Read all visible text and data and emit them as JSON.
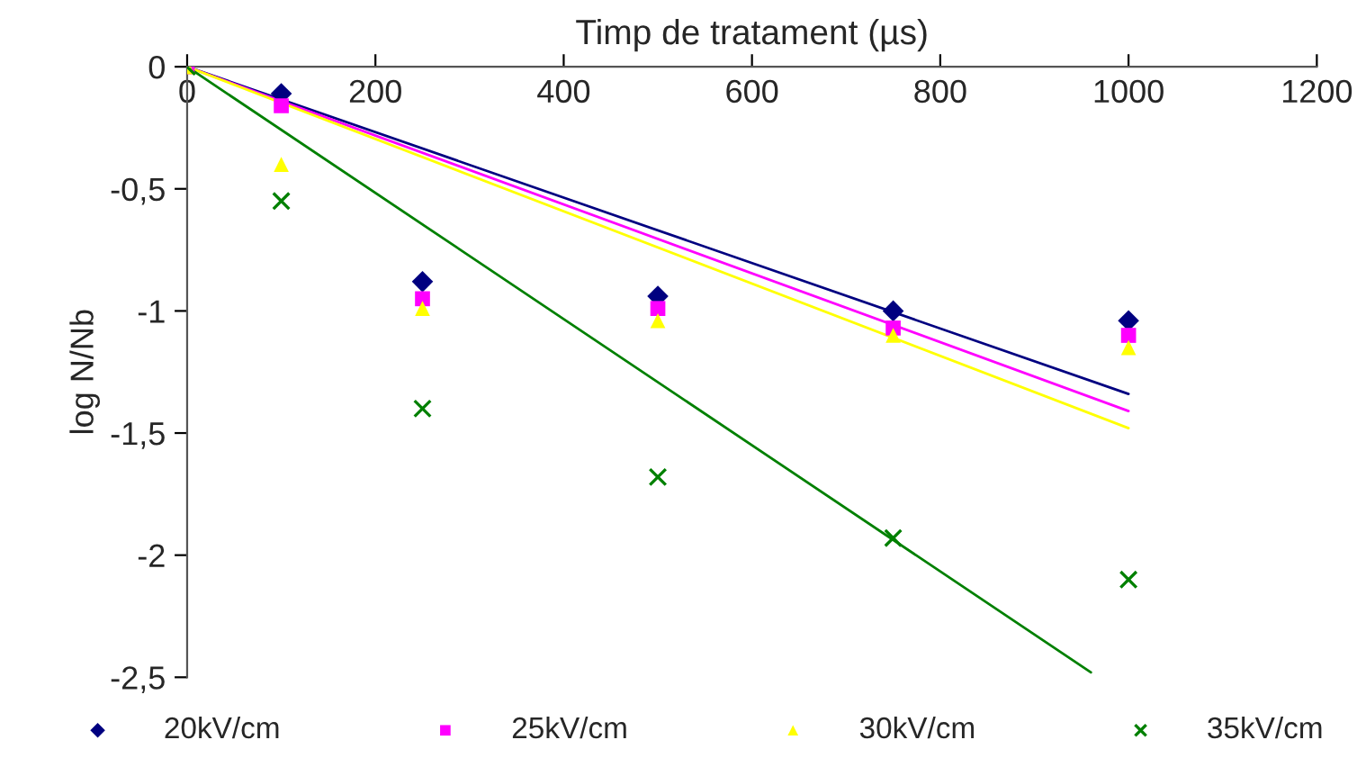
{
  "chart_data": {
    "type": "scatter",
    "xlabel": "Timp de tratament (µs)",
    "ylabel": "log N/Nb",
    "x": [
      0,
      100,
      250,
      500,
      750,
      1000
    ],
    "series": [
      {
        "name": "20kV/cm",
        "color": "#000080",
        "marker": "diamond",
        "values": [
          null,
          -0.11,
          -0.88,
          -0.94,
          -1.0,
          -1.04
        ]
      },
      {
        "name": "25kV/cm",
        "color": "#ff00ff",
        "marker": "square",
        "values": [
          0,
          -0.16,
          -0.95,
          -0.99,
          -1.07,
          -1.1
        ]
      },
      {
        "name": "30kV/cm",
        "color": "#ffff00",
        "marker": "triangle",
        "values": [
          0,
          -0.4,
          -0.99,
          -1.04,
          -1.1,
          -1.15
        ]
      },
      {
        "name": "35kV/cm",
        "color": "#008000",
        "marker": "cross",
        "values": [
          0,
          -0.55,
          -1.4,
          -1.68,
          -1.93,
          -2.1
        ]
      },
      {
        "type": "line",
        "color": "#000080",
        "x": [
          0,
          1000
        ],
        "values": [
          0,
          -1.34
        ]
      },
      {
        "type": "line",
        "color": "#ff00ff",
        "x": [
          0,
          1000
        ],
        "values": [
          0,
          -1.41
        ]
      },
      {
        "type": "line",
        "color": "#ffff00",
        "x": [
          0,
          1000
        ],
        "values": [
          0,
          -1.48
        ]
      },
      {
        "type": "line",
        "color": "#008000",
        "x": [
          0,
          960
        ],
        "values": [
          0,
          -2.48
        ]
      }
    ],
    "xlim": [
      0,
      1200
    ],
    "xticks": [
      0,
      200,
      400,
      600,
      800,
      1000,
      1200
    ],
    "ylim": [
      -2.5,
      0
    ],
    "yticks": [
      {
        "value": -2.5,
        "label": "-2,5"
      },
      -2,
      {
        "value": -1.5,
        "label": "-1,5"
      },
      -1,
      {
        "value": -0.5,
        "label": "-0,5"
      },
      0
    ],
    "grid": false,
    "legend": "bottom"
  }
}
